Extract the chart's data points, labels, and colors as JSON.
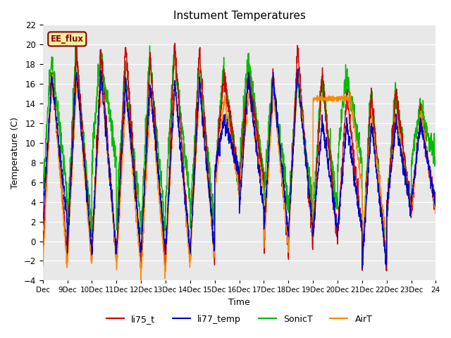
{
  "title": "Instument Temperatures",
  "ylabel": "Temperature (C)",
  "xlabel": "Time",
  "ylim": [
    -4,
    22
  ],
  "xlim": [
    0,
    16
  ],
  "x_tick_labels": [
    "Dec",
    "9Dec",
    "10Dec",
    "11Dec",
    "12Dec",
    "13Dec",
    "14Dec",
    "15Dec",
    "16Dec",
    "17Dec",
    "18Dec",
    "19Dec",
    "20Dec",
    "21Dec",
    "22Dec",
    "23Dec",
    "24"
  ],
  "x_tick_positions": [
    0,
    1,
    2,
    3,
    4,
    5,
    6,
    7,
    8,
    9,
    10,
    11,
    12,
    13,
    14,
    15,
    16
  ],
  "annotation_text": "EE_flux",
  "bg_color": "#e8e8e8",
  "fig_color": "#ffffff",
  "series": {
    "li75_t": {
      "color": "#cc0000",
      "label": "li75_t"
    },
    "li77_temp": {
      "color": "#0000cc",
      "label": "li77_temp"
    },
    "SonicT": {
      "color": "#00bb00",
      "label": "SonicT"
    },
    "AirT": {
      "color": "#ff8800",
      "label": "AirT"
    }
  }
}
